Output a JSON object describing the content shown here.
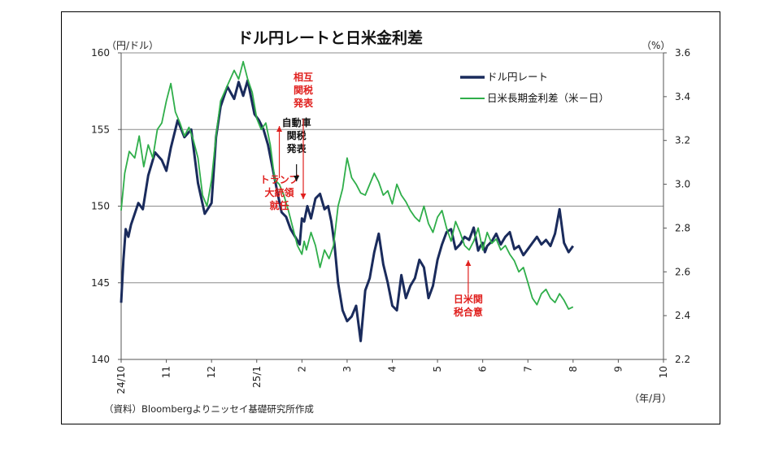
{
  "chart_data": {
    "type": "line",
    "title": "ドル円レートと日米金利差",
    "left_unit": "（円/ドル）",
    "right_unit": "（%）",
    "x_unit": "（年/月）",
    "source": "（資料）Bloombergよりニッセイ基礎研究所作成",
    "x_ticks": [
      "24/10",
      "11",
      "12",
      "25/1",
      "2",
      "3",
      "4",
      "5",
      "6",
      "7",
      "8",
      "9",
      "10"
    ],
    "left_axis": {
      "ylim": [
        140,
        160
      ],
      "ticks": [
        "140",
        "145",
        "150",
        "155",
        "160"
      ]
    },
    "right_axis": {
      "ylim": [
        2.2,
        3.6
      ],
      "ticks": [
        "2.2",
        "2.4",
        "2.6",
        "2.8",
        "3.0",
        "3.2",
        "3.4",
        "3.6"
      ]
    },
    "grid": "horizontal",
    "legend_position": "top-right",
    "series": [
      {
        "name": "ドル円レート",
        "axis": "left",
        "color": "#1a2b5c",
        "x": [
          0,
          0.05,
          0.1,
          0.16,
          0.22,
          0.3,
          0.38,
          0.48,
          0.6,
          0.75,
          0.9,
          1.0,
          1.1,
          1.25,
          1.4,
          1.55,
          1.7,
          1.85,
          2.0,
          2.1,
          2.2,
          2.35,
          2.5,
          2.6,
          2.7,
          2.8,
          2.95,
          3.05,
          3.15,
          3.25,
          3.35,
          3.45,
          3.55,
          3.65,
          3.75,
          3.85,
          3.95,
          4.0,
          4.05,
          4.12,
          4.2,
          4.3,
          4.4,
          4.5,
          4.58,
          4.65,
          4.72,
          4.8,
          4.9,
          5.0,
          5.1,
          5.2,
          5.3,
          5.4,
          5.5,
          5.6,
          5.7,
          5.8,
          5.9,
          6.0,
          6.1,
          6.2,
          6.3,
          6.4,
          6.5,
          6.6,
          6.7,
          6.8,
          6.9,
          7.0,
          7.1,
          7.2,
          7.3,
          7.4,
          7.5,
          7.6,
          7.7,
          7.8,
          7.9,
          7.95,
          8.0,
          8.05,
          8.1,
          8.2,
          8.3,
          8.4,
          8.5,
          8.6,
          8.7,
          8.8,
          8.9,
          9.0,
          9.1,
          9.2,
          9.3,
          9.4,
          9.5,
          9.6,
          9.7,
          9.8,
          9.9,
          10.0
        ],
        "y": [
          143.7,
          146.5,
          148.5,
          148.0,
          148.8,
          149.5,
          150.2,
          149.8,
          152.0,
          153.5,
          153.0,
          152.3,
          153.8,
          155.6,
          154.5,
          155.0,
          151.5,
          149.5,
          150.2,
          154.5,
          156.5,
          157.8,
          157.0,
          158.1,
          157.2,
          158.2,
          156.0,
          155.6,
          155.0,
          154.0,
          152.5,
          151.0,
          149.6,
          149.3,
          148.5,
          148.0,
          147.5,
          149.2,
          149.0,
          150.0,
          149.2,
          150.5,
          150.8,
          149.8,
          150.0,
          149.0,
          147.5,
          145.0,
          143.2,
          142.5,
          142.8,
          143.5,
          141.2,
          144.5,
          145.3,
          147.0,
          148.2,
          146.2,
          145.0,
          143.5,
          143.2,
          145.5,
          144.0,
          144.8,
          145.3,
          146.5,
          146.0,
          144.0,
          144.8,
          146.5,
          147.5,
          148.3,
          148.5,
          147.2,
          147.5,
          148.0,
          147.8,
          148.6,
          147.1,
          147.4,
          147.6,
          147.0,
          147.4,
          147.7,
          148.2,
          147.5,
          148.0,
          148.3,
          147.2,
          147.4,
          146.8,
          147.2,
          147.6,
          148.0,
          147.5,
          147.8,
          147.4,
          148.2,
          149.8,
          147.6,
          147.0,
          147.4
        ]
      },
      {
        "name": "日米長期金利差（米－日）",
        "axis": "right",
        "color": "#2fae4a",
        "x": [
          0,
          0.08,
          0.18,
          0.3,
          0.4,
          0.5,
          0.6,
          0.7,
          0.8,
          0.9,
          1.0,
          1.1,
          1.2,
          1.3,
          1.4,
          1.5,
          1.6,
          1.7,
          1.8,
          1.9,
          2.0,
          2.1,
          2.2,
          2.35,
          2.5,
          2.6,
          2.7,
          2.8,
          2.9,
          3.0,
          3.1,
          3.2,
          3.3,
          3.4,
          3.5,
          3.6,
          3.7,
          3.8,
          3.9,
          4.0,
          4.05,
          4.1,
          4.2,
          4.3,
          4.4,
          4.5,
          4.6,
          4.7,
          4.8,
          4.9,
          5.0,
          5.1,
          5.2,
          5.3,
          5.4,
          5.5,
          5.6,
          5.7,
          5.8,
          5.9,
          6.0,
          6.1,
          6.2,
          6.3,
          6.4,
          6.5,
          6.6,
          6.7,
          6.8,
          6.9,
          7.0,
          7.1,
          7.2,
          7.3,
          7.4,
          7.5,
          7.6,
          7.7,
          7.8,
          7.9,
          8.0,
          8.1,
          8.2,
          8.3,
          8.4,
          8.5,
          8.6,
          8.7,
          8.8,
          8.9,
          9.0,
          9.1,
          9.2,
          9.3,
          9.4,
          9.5,
          9.6,
          9.7,
          9.8,
          9.9,
          10.0
        ],
        "y": [
          2.88,
          3.05,
          3.15,
          3.12,
          3.22,
          3.08,
          3.18,
          3.12,
          3.25,
          3.28,
          3.38,
          3.46,
          3.33,
          3.28,
          3.22,
          3.26,
          3.2,
          3.12,
          2.95,
          2.9,
          3.02,
          3.22,
          3.38,
          3.45,
          3.52,
          3.48,
          3.56,
          3.48,
          3.42,
          3.3,
          3.25,
          3.28,
          3.18,
          3.02,
          3.0,
          2.95,
          2.88,
          2.8,
          2.72,
          2.68,
          2.74,
          2.7,
          2.78,
          2.72,
          2.62,
          2.7,
          2.66,
          2.72,
          2.9,
          2.98,
          3.12,
          3.03,
          3.0,
          2.96,
          2.95,
          3.0,
          3.05,
          3.01,
          2.95,
          2.97,
          2.91,
          3.0,
          2.95,
          2.92,
          2.88,
          2.85,
          2.83,
          2.9,
          2.82,
          2.78,
          2.85,
          2.88,
          2.8,
          2.74,
          2.83,
          2.78,
          2.72,
          2.7,
          2.74,
          2.8,
          2.7,
          2.78,
          2.73,
          2.75,
          2.7,
          2.72,
          2.68,
          2.65,
          2.6,
          2.62,
          2.55,
          2.48,
          2.45,
          2.5,
          2.52,
          2.48,
          2.46,
          2.5,
          2.47,
          2.43,
          2.44
        ]
      }
    ],
    "annotations": [
      {
        "lines": [
          "トランプ",
          "大統領",
          "就任"
        ],
        "color": "red",
        "x": 3.5
      },
      {
        "lines": [
          "自動車",
          "関税",
          "発表"
        ],
        "color": "black",
        "x": 3.88
      },
      {
        "lines": [
          "相互",
          "関税",
          "発表"
        ],
        "color": "red",
        "x": 4.03
      },
      {
        "lines": [
          "日米関",
          "税合意"
        ],
        "color": "red",
        "x": 7.68
      }
    ]
  }
}
